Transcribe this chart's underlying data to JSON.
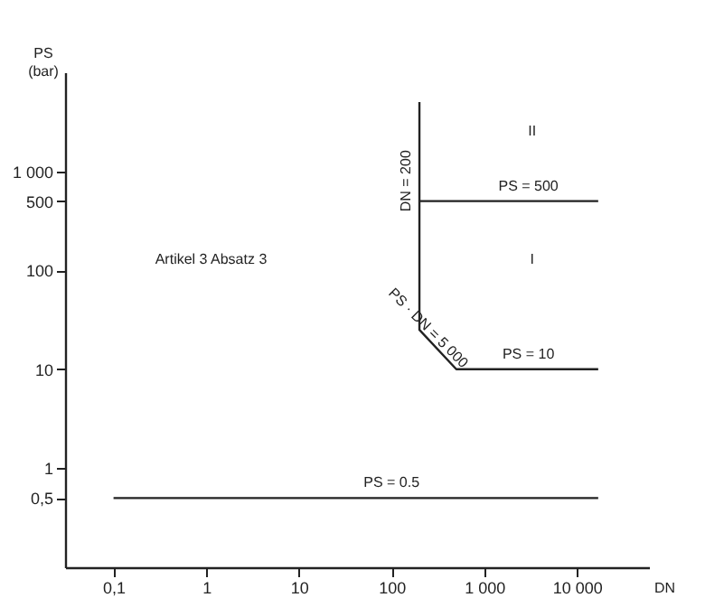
{
  "chart_data": {
    "type": "line",
    "xlabel": "DN",
    "ylabel": "PS (bar)",
    "log": "xy",
    "grid": false,
    "xlim": [
      0.03,
      60000
    ],
    "ylim": [
      0.1,
      10000
    ],
    "xticks": [
      {
        "value": 0.1,
        "label": "0,1"
      },
      1,
      10,
      100,
      {
        "value": 1000,
        "label": "1 000"
      },
      {
        "value": 10000,
        "label": "10 000"
      }
    ],
    "yticks": [
      {
        "value": 0.5,
        "label": "0,5"
      },
      1,
      10,
      100,
      500,
      {
        "value": 1000,
        "label": "1 000"
      }
    ],
    "series": [
      {
        "color": "#222222",
        "x": [
          0.1,
          17000
        ],
        "values": [
          0.5,
          0.5
        ]
      },
      {
        "color": "#222222",
        "x": [
          200,
          200,
          500,
          17000
        ],
        "values": [
          5000,
          25,
          10,
          10
        ]
      },
      {
        "color": "#222222",
        "x": [
          200,
          17000
        ],
        "values": [
          500,
          500
        ]
      }
    ],
    "annotations": [
      "Artikel 3  Absatz 3",
      "II",
      "I",
      {
        "text": "PS = 500",
        "x": 3000,
        "y": 500
      },
      {
        "text": "PS = 10",
        "x": 3000,
        "y": 10
      },
      {
        "text": "PS = 0.5",
        "x": 100,
        "y": 0.5
      },
      {
        "text": "DN = 200",
        "x": 200,
        "y": 800
      },
      {
        "text": "PS · DN = 5 000",
        "x": 316,
        "y": 16
      }
    ]
  }
}
